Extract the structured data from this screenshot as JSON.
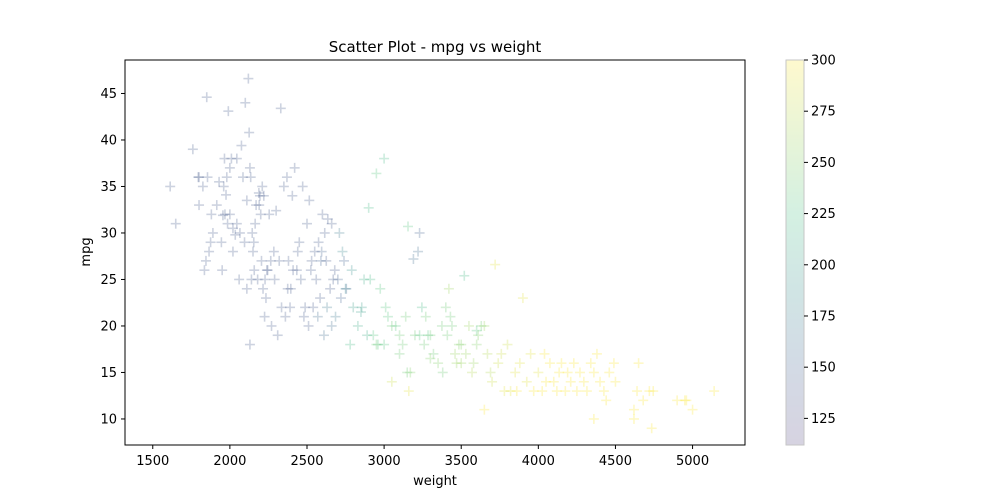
{
  "chart_data": {
    "type": "scatter",
    "title": "Scatter Plot - mpg vs weight",
    "xlabel": "weight",
    "ylabel": "mpg",
    "xlim": [
      1320,
      5340
    ],
    "ylim": [
      7.2,
      48.6
    ],
    "xticks": [
      1500,
      2000,
      2500,
      3000,
      3500,
      4000,
      4500,
      5000
    ],
    "yticks": [
      10,
      15,
      20,
      25,
      30,
      35,
      40,
      45
    ],
    "marker": "+",
    "marker_alpha": 0.25,
    "grid": false,
    "colorbar": {
      "cmap": "viridis-to-yellow",
      "range": [
        112,
        300
      ],
      "ticks": [
        125,
        150,
        175,
        200,
        225,
        250,
        275,
        300
      ],
      "colors": [
        "#4b3b7a",
        "#3a5b8c",
        "#2f8a8a",
        "#3fbf7f",
        "#9ad24f",
        "#fde725"
      ]
    },
    "points": [
      [
        1613,
        35,
        140
      ],
      [
        1649,
        31,
        140
      ],
      [
        1760,
        39,
        140
      ],
      [
        1795,
        36,
        140
      ],
      [
        1800,
        33,
        140
      ],
      [
        1835,
        26,
        140
      ],
      [
        1845,
        27,
        140
      ],
      [
        1850,
        44.6,
        140
      ],
      [
        1875,
        29,
        140
      ],
      [
        1950,
        26,
        140
      ],
      [
        1955,
        31.9,
        140
      ],
      [
        1965,
        38,
        140
      ],
      [
        1968,
        32,
        140
      ],
      [
        1975,
        34.1,
        140
      ],
      [
        1985,
        31,
        140
      ],
      [
        1990,
        43.1,
        140
      ],
      [
        2000,
        37,
        140
      ],
      [
        2020,
        30.5,
        140
      ],
      [
        2035,
        29.8,
        140
      ],
      [
        2045,
        38,
        140
      ],
      [
        2065,
        30,
        140
      ],
      [
        2075,
        39.4,
        140
      ],
      [
        2100,
        44,
        140
      ],
      [
        2110,
        33.5,
        140
      ],
      [
        2120,
        46.6,
        140
      ],
      [
        2125,
        40.8,
        140
      ],
      [
        2130,
        37,
        140
      ],
      [
        2135,
        36,
        140
      ],
      [
        2140,
        25,
        140
      ],
      [
        2155,
        29,
        140
      ],
      [
        2158,
        26,
        140
      ],
      [
        2164,
        31,
        140
      ],
      [
        2188,
        34.3,
        140
      ],
      [
        2190,
        33,
        140
      ],
      [
        2200,
        32,
        140
      ],
      [
        2210,
        35,
        140
      ],
      [
        2215,
        24,
        140
      ],
      [
        2220,
        34,
        140
      ],
      [
        2228,
        25,
        140
      ],
      [
        2234,
        23,
        140
      ],
      [
        2245,
        26,
        140
      ],
      [
        2265,
        27,
        140
      ],
      [
        2290,
        25,
        140
      ],
      [
        2300,
        32.4,
        140
      ],
      [
        2320,
        27,
        140
      ],
      [
        2330,
        43.4,
        140
      ],
      [
        2350,
        35,
        140
      ],
      [
        2370,
        36,
        140
      ],
      [
        2380,
        27,
        140
      ],
      [
        2395,
        24,
        140
      ],
      [
        2405,
        34,
        140
      ],
      [
        2420,
        37,
        140
      ],
      [
        2434,
        26,
        140
      ],
      [
        2450,
        29,
        140
      ],
      [
        2472,
        35,
        140
      ],
      [
        2488,
        22,
        140
      ],
      [
        2500,
        31,
        140
      ],
      [
        2515,
        33.5,
        140
      ],
      [
        2525,
        26,
        140
      ],
      [
        2540,
        22,
        140
      ],
      [
        2560,
        25,
        140
      ],
      [
        2575,
        29,
        140
      ],
      [
        2585,
        23,
        140
      ],
      [
        2595,
        28,
        150
      ],
      [
        2600,
        32,
        140
      ],
      [
        2615,
        30,
        140
      ],
      [
        2625,
        27,
        140
      ],
      [
        2635,
        31.5,
        140
      ],
      [
        2650,
        24,
        140
      ],
      [
        2660,
        31,
        140
      ],
      [
        2670,
        25,
        140
      ],
      [
        2680,
        26,
        140
      ],
      [
        2700,
        25,
        150
      ],
      [
        2720,
        23,
        150
      ],
      [
        2740,
        27,
        150
      ],
      [
        2755,
        24,
        150
      ],
      [
        1800,
        36,
        140
      ],
      [
        1825,
        35,
        140
      ],
      [
        1855,
        36,
        140
      ],
      [
        1865,
        28,
        140
      ],
      [
        1880,
        32,
        140
      ],
      [
        1890,
        30,
        140
      ],
      [
        1915,
        33,
        140
      ],
      [
        1930,
        35.5,
        140
      ],
      [
        1945,
        29,
        140
      ],
      [
        1960,
        35,
        140
      ],
      [
        1980,
        36,
        140
      ],
      [
        2000,
        32,
        140
      ],
      [
        2010,
        38,
        140
      ],
      [
        2020,
        28,
        140
      ],
      [
        2045,
        31,
        140
      ],
      [
        2060,
        25,
        140
      ],
      [
        2085,
        36,
        140
      ],
      [
        2095,
        29,
        140
      ],
      [
        2110,
        24,
        140
      ],
      [
        2130,
        18,
        140
      ],
      [
        2145,
        30,
        140
      ],
      [
        2150,
        28,
        140
      ],
      [
        2170,
        33,
        140
      ],
      [
        2180,
        25,
        140
      ],
      [
        2195,
        34,
        140
      ],
      [
        2205,
        27,
        140
      ],
      [
        2225,
        21,
        140
      ],
      [
        2240,
        26,
        140
      ],
      [
        2255,
        32,
        140
      ],
      [
        2270,
        20,
        140
      ],
      [
        2285,
        28,
        140
      ],
      [
        2310,
        19,
        140
      ],
      [
        2335,
        22,
        140
      ],
      [
        2360,
        21,
        140
      ],
      [
        2375,
        24,
        140
      ],
      [
        2390,
        22,
        140
      ],
      [
        2410,
        26,
        140
      ],
      [
        2440,
        28,
        140
      ],
      [
        2460,
        25,
        140
      ],
      [
        2480,
        21,
        140
      ],
      [
        2510,
        20,
        140
      ],
      [
        2530,
        27,
        140
      ],
      [
        2550,
        28,
        140
      ],
      [
        2570,
        21,
        160
      ],
      [
        2590,
        27,
        150
      ],
      [
        2610,
        19,
        160
      ],
      [
        2630,
        22,
        170
      ],
      [
        2660,
        20,
        160
      ],
      [
        2685,
        21,
        170
      ],
      [
        2710,
        30,
        170
      ],
      [
        2730,
        28,
        180
      ],
      [
        2750,
        24,
        180
      ],
      [
        2790,
        26,
        190
      ],
      [
        2800,
        22,
        200
      ],
      [
        2830,
        20,
        210
      ],
      [
        2855,
        22,
        200
      ],
      [
        2870,
        25,
        210
      ],
      [
        2890,
        19,
        210
      ],
      [
        2900,
        32.7,
        220
      ],
      [
        2910,
        25,
        220
      ],
      [
        2930,
        19,
        230
      ],
      [
        2950,
        36.4,
        230
      ],
      [
        2960,
        18,
        230
      ],
      [
        2975,
        24,
        230
      ],
      [
        3000,
        38,
        220
      ],
      [
        3010,
        22,
        230
      ],
      [
        3025,
        21,
        230
      ],
      [
        3050,
        20,
        240
      ],
      [
        3075,
        20,
        230
      ],
      [
        3100,
        19,
        240
      ],
      [
        3120,
        18,
        240
      ],
      [
        3140,
        21,
        240
      ],
      [
        3155,
        30.7,
        230
      ],
      [
        3170,
        15,
        250
      ],
      [
        3190,
        27.2,
        160
      ],
      [
        3200,
        19,
        240
      ],
      [
        3220,
        28,
        160
      ],
      [
        3230,
        30,
        150
      ],
      [
        3245,
        22,
        220
      ],
      [
        3260,
        18,
        240
      ],
      [
        3270,
        21,
        240
      ],
      [
        3285,
        19,
        230
      ],
      [
        3300,
        19,
        240
      ],
      [
        3320,
        17,
        240
      ],
      [
        3350,
        16,
        250
      ],
      [
        3375,
        20,
        240
      ],
      [
        3380,
        15,
        240
      ],
      [
        3400,
        22,
        240
      ],
      [
        3410,
        19,
        240
      ],
      [
        3420,
        24,
        260
      ],
      [
        3430,
        21,
        240
      ],
      [
        3440,
        20,
        240
      ],
      [
        3460,
        17,
        260
      ],
      [
        3470,
        16,
        260
      ],
      [
        3485,
        18,
        250
      ],
      [
        3500,
        18,
        250
      ],
      [
        3520,
        25.4,
        220
      ],
      [
        3530,
        17,
        260
      ],
      [
        3550,
        20,
        260
      ],
      [
        3570,
        15,
        270
      ],
      [
        3580,
        16,
        260
      ],
      [
        3600,
        18,
        250
      ],
      [
        3610,
        19,
        250
      ],
      [
        3630,
        20,
        240
      ],
      [
        3650,
        20,
        260
      ],
      [
        3670,
        17,
        270
      ],
      [
        3690,
        15,
        270
      ],
      [
        3700,
        14,
        280
      ],
      [
        3720,
        26.6,
        290
      ],
      [
        3740,
        16,
        280
      ],
      [
        3760,
        17,
        280
      ],
      [
        3780,
        13,
        290
      ],
      [
        3800,
        18,
        280
      ],
      [
        3820,
        13,
        290
      ],
      [
        3850,
        15,
        290
      ],
      [
        3860,
        13,
        300
      ],
      [
        3880,
        16,
        290
      ],
      [
        3900,
        23,
        290
      ],
      [
        3925,
        14,
        290
      ],
      [
        3950,
        17,
        290
      ],
      [
        3970,
        13,
        300
      ],
      [
        4000,
        15,
        290
      ],
      [
        4025,
        13,
        300
      ],
      [
        4040,
        17,
        300
      ],
      [
        4050,
        14,
        300
      ],
      [
        4075,
        16,
        300
      ],
      [
        4100,
        14,
        300
      ],
      [
        4120,
        13,
        300
      ],
      [
        4135,
        15,
        300
      ],
      [
        4150,
        16,
        300
      ],
      [
        4175,
        13,
        300
      ],
      [
        4190,
        15,
        300
      ],
      [
        4210,
        14,
        300
      ],
      [
        4230,
        16,
        300
      ],
      [
        4250,
        13,
        300
      ],
      [
        4270,
        15,
        300
      ],
      [
        4295,
        14,
        300
      ],
      [
        4315,
        13,
        300
      ],
      [
        4340,
        16,
        300
      ],
      [
        4360,
        15,
        300
      ],
      [
        4380,
        17,
        300
      ],
      [
        4400,
        14,
        300
      ],
      [
        4425,
        13,
        300
      ],
      [
        4440,
        12,
        300
      ],
      [
        4460,
        15,
        300
      ],
      [
        4490,
        16,
        300
      ],
      [
        4500,
        14,
        300
      ],
      [
        4620,
        11,
        300
      ],
      [
        4640,
        13,
        300
      ],
      [
        4650,
        16,
        300
      ],
      [
        4680,
        12,
        300
      ],
      [
        4720,
        13,
        300
      ],
      [
        4735,
        9,
        300
      ],
      [
        4745,
        13,
        300
      ],
      [
        4900,
        12,
        300
      ],
      [
        4950,
        12,
        300
      ],
      [
        4960,
        12,
        300
      ],
      [
        5000,
        11,
        300
      ],
      [
        5140,
        13,
        300
      ],
      [
        3160,
        13,
        290
      ],
      [
        3050,
        14,
        280
      ],
      [
        3650,
        11,
        300
      ],
      [
        4360,
        10,
        300
      ],
      [
        4620,
        10,
        300
      ],
      [
        3600,
        19.5,
        230
      ],
      [
        3500,
        16,
        260
      ],
      [
        3300,
        16.5,
        250
      ],
      [
        3150,
        15,
        240
      ],
      [
        2850,
        21.5,
        200
      ],
      [
        2780,
        18,
        220
      ],
      [
        2950,
        18,
        240
      ],
      [
        3000,
        18,
        230
      ],
      [
        3100,
        17,
        240
      ],
      [
        3230,
        19,
        230
      ]
    ]
  }
}
